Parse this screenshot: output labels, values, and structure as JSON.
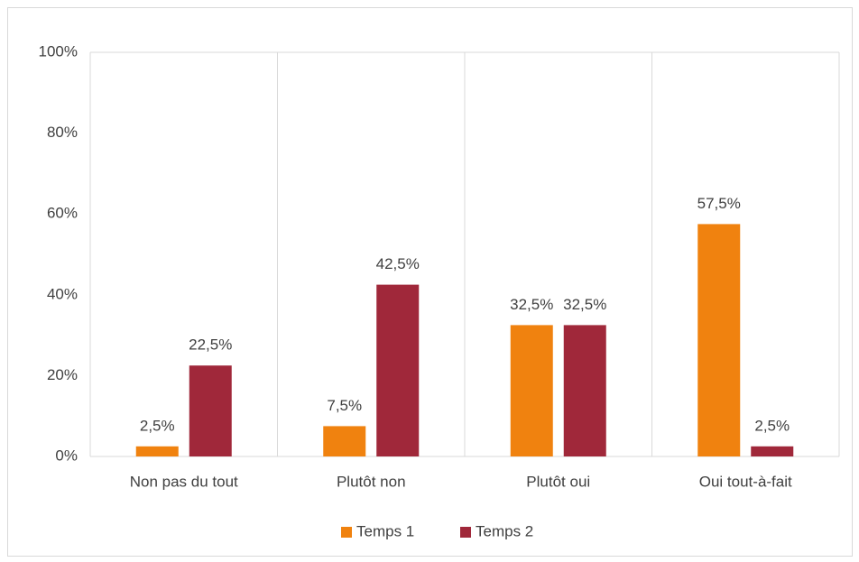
{
  "chart_data": {
    "type": "bar",
    "categories": [
      "Non pas du tout",
      "Plutôt non",
      "Plutôt oui",
      "Oui tout-à-fait"
    ],
    "series": [
      {
        "name": "Temps 1",
        "color": "#f0820f",
        "values": [
          2.5,
          7.5,
          32.5,
          57.5
        ],
        "value_labels": [
          "2,5%",
          "7,5%",
          "32,5%",
          "57,5%"
        ]
      },
      {
        "name": "Temps 2",
        "color": "#a0283a",
        "values": [
          22.5,
          42.5,
          32.5,
          2.5
        ],
        "value_labels": [
          "22,5%",
          "42,5%",
          "32,5%",
          "2,5%"
        ]
      }
    ],
    "ylim": [
      0,
      100
    ],
    "yticks": [
      {
        "value": 0,
        "label": "0%"
      },
      {
        "value": 20,
        "label": "20%"
      },
      {
        "value": 40,
        "label": "40%"
      },
      {
        "value": 60,
        "label": "60%"
      },
      {
        "value": 80,
        "label": "80%"
      },
      {
        "value": 100,
        "label": "100%"
      }
    ],
    "legend": "bottom"
  }
}
